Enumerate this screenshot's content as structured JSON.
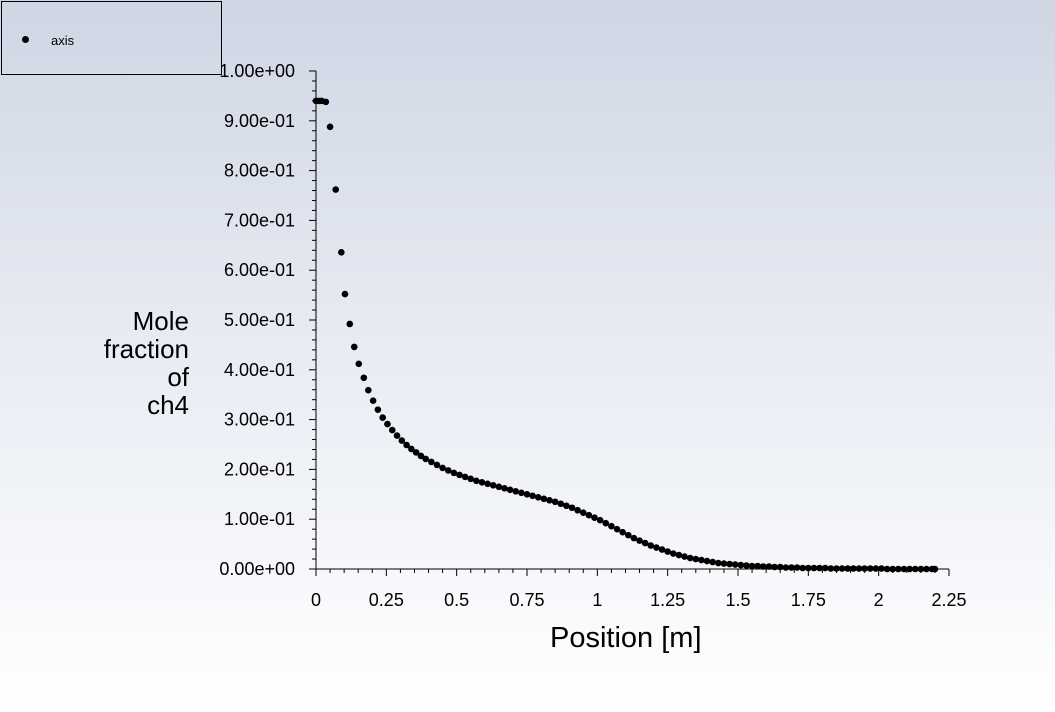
{
  "chart_data": {
    "type": "scatter",
    "legend": [
      "axis"
    ],
    "legend_position": "top-left",
    "xlabel": "Position [m]",
    "ylabel_lines": [
      "Mole",
      "fraction",
      "of",
      "ch4"
    ],
    "xlim": [
      0,
      2.25
    ],
    "ylim": [
      0,
      1
    ],
    "xticks": [
      "0",
      "0.25",
      "0.5",
      "0.75",
      "1",
      "1.25",
      "1.5",
      "1.75",
      "2",
      "2.25"
    ],
    "yticks": [
      "0.00e+00",
      "1.00e-01",
      "2.00e-01",
      "3.00e-01",
      "4.00e-01",
      "5.00e-01",
      "6.00e-01",
      "7.00e-01",
      "8.00e-01",
      "9.00e-01",
      "1.00e+00"
    ],
    "marker_color": "#000000",
    "series": [
      {
        "name": "axis",
        "points": [
          [
            0.0,
            0.94
          ],
          [
            0.01,
            0.94
          ],
          [
            0.02,
            0.94
          ],
          [
            0.035,
            0.938
          ],
          [
            0.05,
            0.888
          ],
          [
            0.07,
            0.762
          ],
          [
            0.09,
            0.636
          ],
          [
            0.103,
            0.552
          ],
          [
            0.12,
            0.492
          ],
          [
            0.136,
            0.446
          ],
          [
            0.152,
            0.412
          ],
          [
            0.17,
            0.384
          ],
          [
            0.186,
            0.359
          ],
          [
            0.203,
            0.338
          ],
          [
            0.22,
            0.32
          ],
          [
            0.237,
            0.304
          ],
          [
            0.254,
            0.291
          ],
          [
            0.271,
            0.279
          ],
          [
            0.288,
            0.268
          ],
          [
            0.305,
            0.258
          ],
          [
            0.322,
            0.249
          ],
          [
            0.339,
            0.241
          ],
          [
            0.356,
            0.234
          ],
          [
            0.373,
            0.227
          ],
          [
            0.39,
            0.221
          ],
          [
            0.41,
            0.215
          ],
          [
            0.43,
            0.209
          ],
          [
            0.45,
            0.203
          ],
          [
            0.47,
            0.198
          ],
          [
            0.49,
            0.193
          ],
          [
            0.51,
            0.189
          ],
          [
            0.53,
            0.185
          ],
          [
            0.55,
            0.181
          ],
          [
            0.57,
            0.177
          ],
          [
            0.59,
            0.174
          ],
          [
            0.61,
            0.171
          ],
          [
            0.63,
            0.168
          ],
          [
            0.65,
            0.165
          ],
          [
            0.67,
            0.162
          ],
          [
            0.69,
            0.159
          ],
          [
            0.71,
            0.156
          ],
          [
            0.73,
            0.153
          ],
          [
            0.75,
            0.15
          ],
          [
            0.77,
            0.147
          ],
          [
            0.79,
            0.144
          ],
          [
            0.81,
            0.141
          ],
          [
            0.83,
            0.138
          ],
          [
            0.85,
            0.135
          ],
          [
            0.87,
            0.131
          ],
          [
            0.89,
            0.127
          ],
          [
            0.91,
            0.123
          ],
          [
            0.93,
            0.118
          ],
          [
            0.95,
            0.113
          ],
          [
            0.97,
            0.108
          ],
          [
            0.99,
            0.103
          ],
          [
            1.01,
            0.098
          ],
          [
            1.03,
            0.092
          ],
          [
            1.05,
            0.086
          ],
          [
            1.07,
            0.08
          ],
          [
            1.09,
            0.074
          ],
          [
            1.11,
            0.068
          ],
          [
            1.13,
            0.062
          ],
          [
            1.15,
            0.057
          ],
          [
            1.17,
            0.052
          ],
          [
            1.19,
            0.047
          ],
          [
            1.21,
            0.043
          ],
          [
            1.23,
            0.039
          ],
          [
            1.25,
            0.035
          ],
          [
            1.27,
            0.031
          ],
          [
            1.29,
            0.028
          ],
          [
            1.31,
            0.025
          ],
          [
            1.33,
            0.022
          ],
          [
            1.35,
            0.02
          ],
          [
            1.37,
            0.018
          ],
          [
            1.39,
            0.016
          ],
          [
            1.41,
            0.014
          ],
          [
            1.43,
            0.012
          ],
          [
            1.45,
            0.011
          ],
          [
            1.47,
            0.01
          ],
          [
            1.49,
            0.009
          ],
          [
            1.51,
            0.008
          ],
          [
            1.53,
            0.007
          ],
          [
            1.55,
            0.006
          ],
          [
            1.57,
            0.006
          ],
          [
            1.59,
            0.005
          ],
          [
            1.61,
            0.005
          ],
          [
            1.63,
            0.004
          ],
          [
            1.65,
            0.004
          ],
          [
            1.67,
            0.003
          ],
          [
            1.69,
            0.003
          ],
          [
            1.71,
            0.003
          ],
          [
            1.73,
            0.002
          ],
          [
            1.75,
            0.002
          ],
          [
            1.77,
            0.002
          ],
          [
            1.79,
            0.002
          ],
          [
            1.81,
            0.002
          ],
          [
            1.83,
            0.001
          ],
          [
            1.85,
            0.001
          ],
          [
            1.87,
            0.001
          ],
          [
            1.89,
            0.001
          ],
          [
            1.91,
            0.001
          ],
          [
            1.93,
            0.001
          ],
          [
            1.95,
            0.001
          ],
          [
            1.97,
            0.001
          ],
          [
            1.99,
            0.001
          ],
          [
            2.01,
            0.001
          ],
          [
            2.03,
            0.0
          ],
          [
            2.05,
            0.0
          ],
          [
            2.07,
            0.0
          ],
          [
            2.09,
            0.0
          ],
          [
            2.11,
            0.0
          ],
          [
            2.13,
            0.0
          ],
          [
            2.15,
            0.0
          ],
          [
            2.17,
            0.0
          ],
          [
            2.19,
            0.0
          ],
          [
            2.2,
            0.0
          ]
        ]
      }
    ]
  }
}
